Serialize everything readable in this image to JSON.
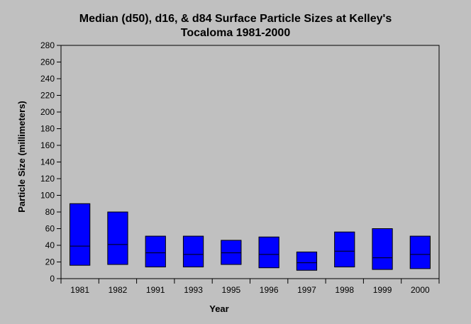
{
  "chart_data": {
    "type": "floating-bar",
    "title": [
      "Median (d50), d16, & d84 Surface Particle Sizes at Kelley's",
      "Tocaloma 1981-2000"
    ],
    "xlabel": "Year",
    "ylabel": "Particle Size (millimeters)",
    "ylim": [
      0,
      280
    ],
    "yticks": [
      0,
      20,
      40,
      60,
      80,
      100,
      120,
      140,
      160,
      180,
      200,
      220,
      240,
      260,
      280
    ],
    "categories": [
      "1981",
      "1982",
      "1991",
      "1993",
      "1995",
      "1996",
      "1997",
      "1998",
      "1999",
      "2000"
    ],
    "series": [
      {
        "name": "d16",
        "values": [
          16,
          17,
          14,
          14,
          17,
          13,
          10,
          14,
          11,
          12
        ]
      },
      {
        "name": "d50",
        "values": [
          39,
          41,
          31,
          29,
          31,
          29,
          19,
          33,
          25,
          29
        ]
      },
      {
        "name": "d84",
        "values": [
          90,
          80,
          51,
          51,
          46,
          50,
          32,
          56,
          60,
          51
        ]
      }
    ],
    "colors": {
      "bar": "#0000ff",
      "background": "#c0c0c0",
      "line": "#000000"
    },
    "grid": false,
    "legend": "none"
  }
}
